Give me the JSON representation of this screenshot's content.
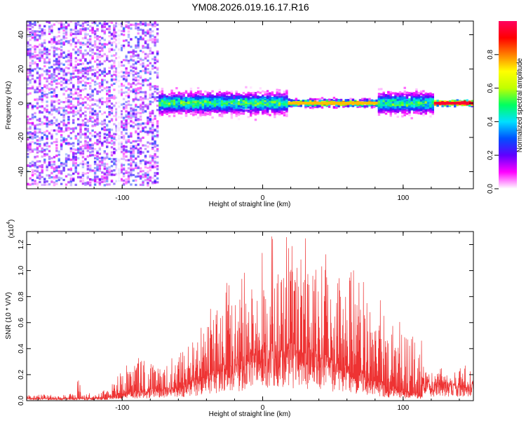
{
  "chart_data": [
    {
      "type": "heatmap",
      "title": "YM08.2026.019.16.17.R16",
      "xlabel": "Height of straight line (km)",
      "ylabel": "Frequency (Hz)",
      "xlim": [
        -168,
        150
      ],
      "ylim": [
        -50,
        48
      ],
      "xticks": [
        -100,
        0,
        100
      ],
      "xtick_labels": [
        "-100",
        "0",
        "100"
      ],
      "yticks": [
        -40,
        -20,
        0,
        20,
        40
      ],
      "ytick_labels": [
        "-40",
        "-20",
        "0",
        "20",
        "40"
      ],
      "colorbar": {
        "label": "Normalized spectral amplitude",
        "range": [
          0,
          1
        ],
        "ticks": [
          0.0,
          0.2,
          0.4,
          0.6,
          0.8
        ],
        "tick_labels": [
          "0.0",
          "0.2",
          "0.4",
          "0.6",
          "0.8"
        ],
        "colors": [
          "#ffffff",
          "#ff00ff",
          "#6000ff",
          "#0050ff",
          "#00e0ff",
          "#00ff60",
          "#c0ff00",
          "#ffff00",
          "#ff8000",
          "#ff0000",
          "#ff0060"
        ]
      },
      "regions": [
        {
          "x": [
            -168,
            -74
          ],
          "band_hz": 48,
          "level": 0.25
        },
        {
          "x": [
            -74,
            18
          ],
          "band_hz": 8,
          "level": 0.45
        },
        {
          "x": [
            18,
            82
          ],
          "band_hz": 3,
          "level": 0.75
        },
        {
          "x": [
            82,
            122
          ],
          "band_hz": 8,
          "level": 0.45
        },
        {
          "x": [
            122,
            150
          ],
          "band_hz": 2,
          "level": 0.95
        }
      ]
    },
    {
      "type": "line",
      "xlabel": "Height of straight line (km)",
      "ylabel": "SNR (10 * V/V)",
      "y_multiplier_label": "(x10",
      "y_multiplier_exp": "4",
      "xlim": [
        -168,
        150
      ],
      "ylim": [
        0,
        1.3
      ],
      "xticks": [
        -100,
        0,
        100
      ],
      "xtick_labels": [
        "-100",
        "0",
        "100"
      ],
      "yticks": [
        0.0,
        0.2,
        0.4,
        0.6,
        0.8,
        1.0,
        1.2
      ],
      "ytick_labels": [
        "0.0",
        "0.2",
        "0.4",
        "0.6",
        "0.8",
        "1.0",
        "1.2"
      ],
      "color": "#ee3333",
      "series": [
        {
          "name": "SNR",
          "envelope_x": [
            -168,
            -140,
            -134,
            -131,
            -128,
            -115,
            -108,
            -100,
            -90,
            -80,
            -70,
            -60,
            -50,
            -40,
            -30,
            -20,
            -10,
            0,
            10,
            20,
            30,
            40,
            50,
            60,
            70,
            80,
            90,
            100,
            110,
            113,
            114,
            125,
            135,
            145,
            150
          ],
          "envelope_y": [
            0.04,
            0.04,
            0.05,
            0.15,
            0.05,
            0.05,
            0.12,
            0.2,
            0.28,
            0.26,
            0.24,
            0.3,
            0.4,
            0.55,
            0.7,
            0.82,
            0.9,
            1.05,
            1.08,
            1.1,
            1.08,
            1.02,
            0.95,
            0.88,
            0.8,
            0.72,
            0.6,
            0.52,
            0.48,
            0.47,
            0.22,
            0.21,
            0.2,
            0.26,
            0.24
          ],
          "baseline_y": [
            0.02,
            0.02,
            0.02,
            0.02,
            0.02,
            0.02,
            0.03,
            0.06,
            0.08,
            0.09,
            0.1,
            0.12,
            0.16,
            0.22,
            0.28,
            0.32,
            0.36,
            0.42,
            0.45,
            0.45,
            0.42,
            0.38,
            0.33,
            0.28,
            0.22,
            0.16,
            0.12,
            0.08,
            0.06,
            0.05,
            0.15,
            0.16,
            0.14,
            0.12,
            0.14
          ]
        }
      ]
    }
  ]
}
